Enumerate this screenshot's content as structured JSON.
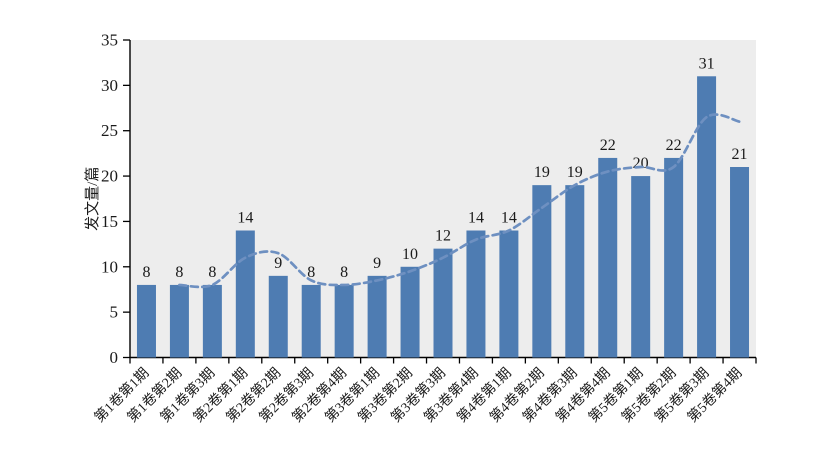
{
  "chart_data": {
    "type": "bar",
    "title": "",
    "xlabel": "",
    "ylabel": "发文量/篇",
    "ylim": [
      0,
      35
    ],
    "yticks": [
      0,
      5,
      10,
      15,
      20,
      25,
      30,
      35
    ],
    "grid": false,
    "legend": "none",
    "categories": [
      "第1卷第1期",
      "第1卷第2期",
      "第1卷第3期",
      "第2卷第1期",
      "第2卷第2期",
      "第2卷第3期",
      "第2卷第4期",
      "第3卷第1期",
      "第3卷第2期",
      "第3卷第3期",
      "第3卷第4期",
      "第4卷第1期",
      "第4卷第2期",
      "第4卷第3期",
      "第4卷第4期",
      "第5卷第1期",
      "第5卷第2期",
      "第5卷第3期",
      "第5卷第4期"
    ],
    "values": [
      8,
      8,
      8,
      14,
      9,
      8,
      8,
      9,
      10,
      12,
      14,
      14,
      19,
      19,
      22,
      20,
      22,
      31,
      21
    ],
    "data_labels": [
      8,
      8,
      8,
      14,
      9,
      8,
      8,
      9,
      10,
      12,
      14,
      14,
      19,
      19,
      22,
      20,
      22,
      31,
      21
    ],
    "trend_line": {
      "style": "dashed",
      "smooth": true,
      "values": [
        null,
        8,
        8,
        11,
        11.5,
        8.5,
        8,
        8.5,
        9.5,
        11,
        13,
        14,
        16.5,
        19,
        20.5,
        21,
        21,
        26.5,
        26
      ]
    },
    "colors": {
      "bar": "#4e7cb2",
      "trend": "#6e90c1",
      "plot_bg": "#ededed",
      "axis": "#000000",
      "text": "#1a1a1a"
    }
  }
}
